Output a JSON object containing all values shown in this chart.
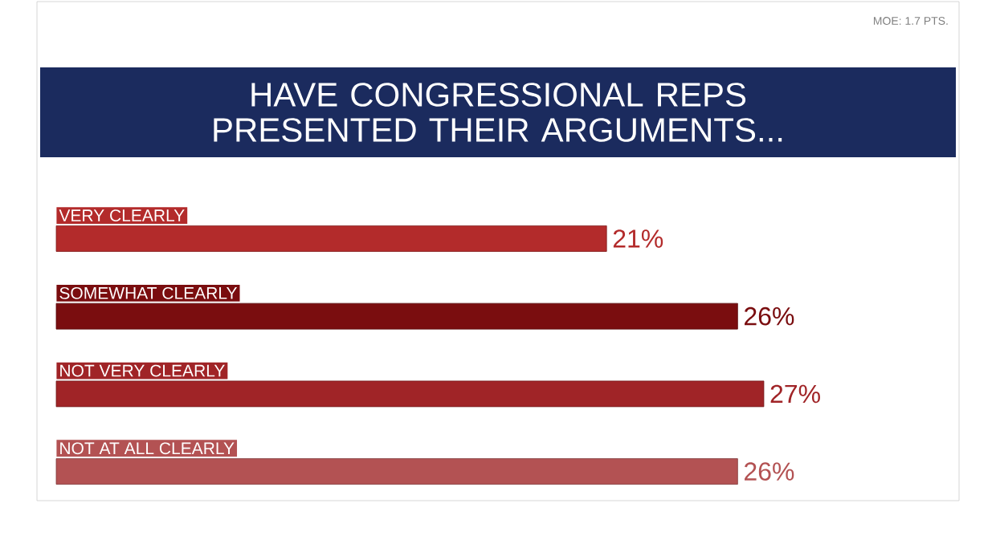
{
  "chart_data": {
    "type": "bar",
    "orientation": "horizontal",
    "title": "HAVE CONGRESSIONAL REPS PRESENTED THEIR ARGUMENTS...",
    "annotations": [
      "MOE: 1.7 PTS."
    ],
    "categories": [
      "VERY CLEARLY",
      "SOMEWHAT CLEARLY",
      "NOT VERY CLEARLY",
      "NOT AT ALL CLEARLY"
    ],
    "values": [
      21,
      26,
      27,
      26
    ],
    "colors": [
      "#b32b2b",
      "#7a0d0f",
      "#a02427",
      "#b35253"
    ],
    "value_labels": [
      "21%",
      "26%",
      "27%",
      "26%"
    ]
  }
}
